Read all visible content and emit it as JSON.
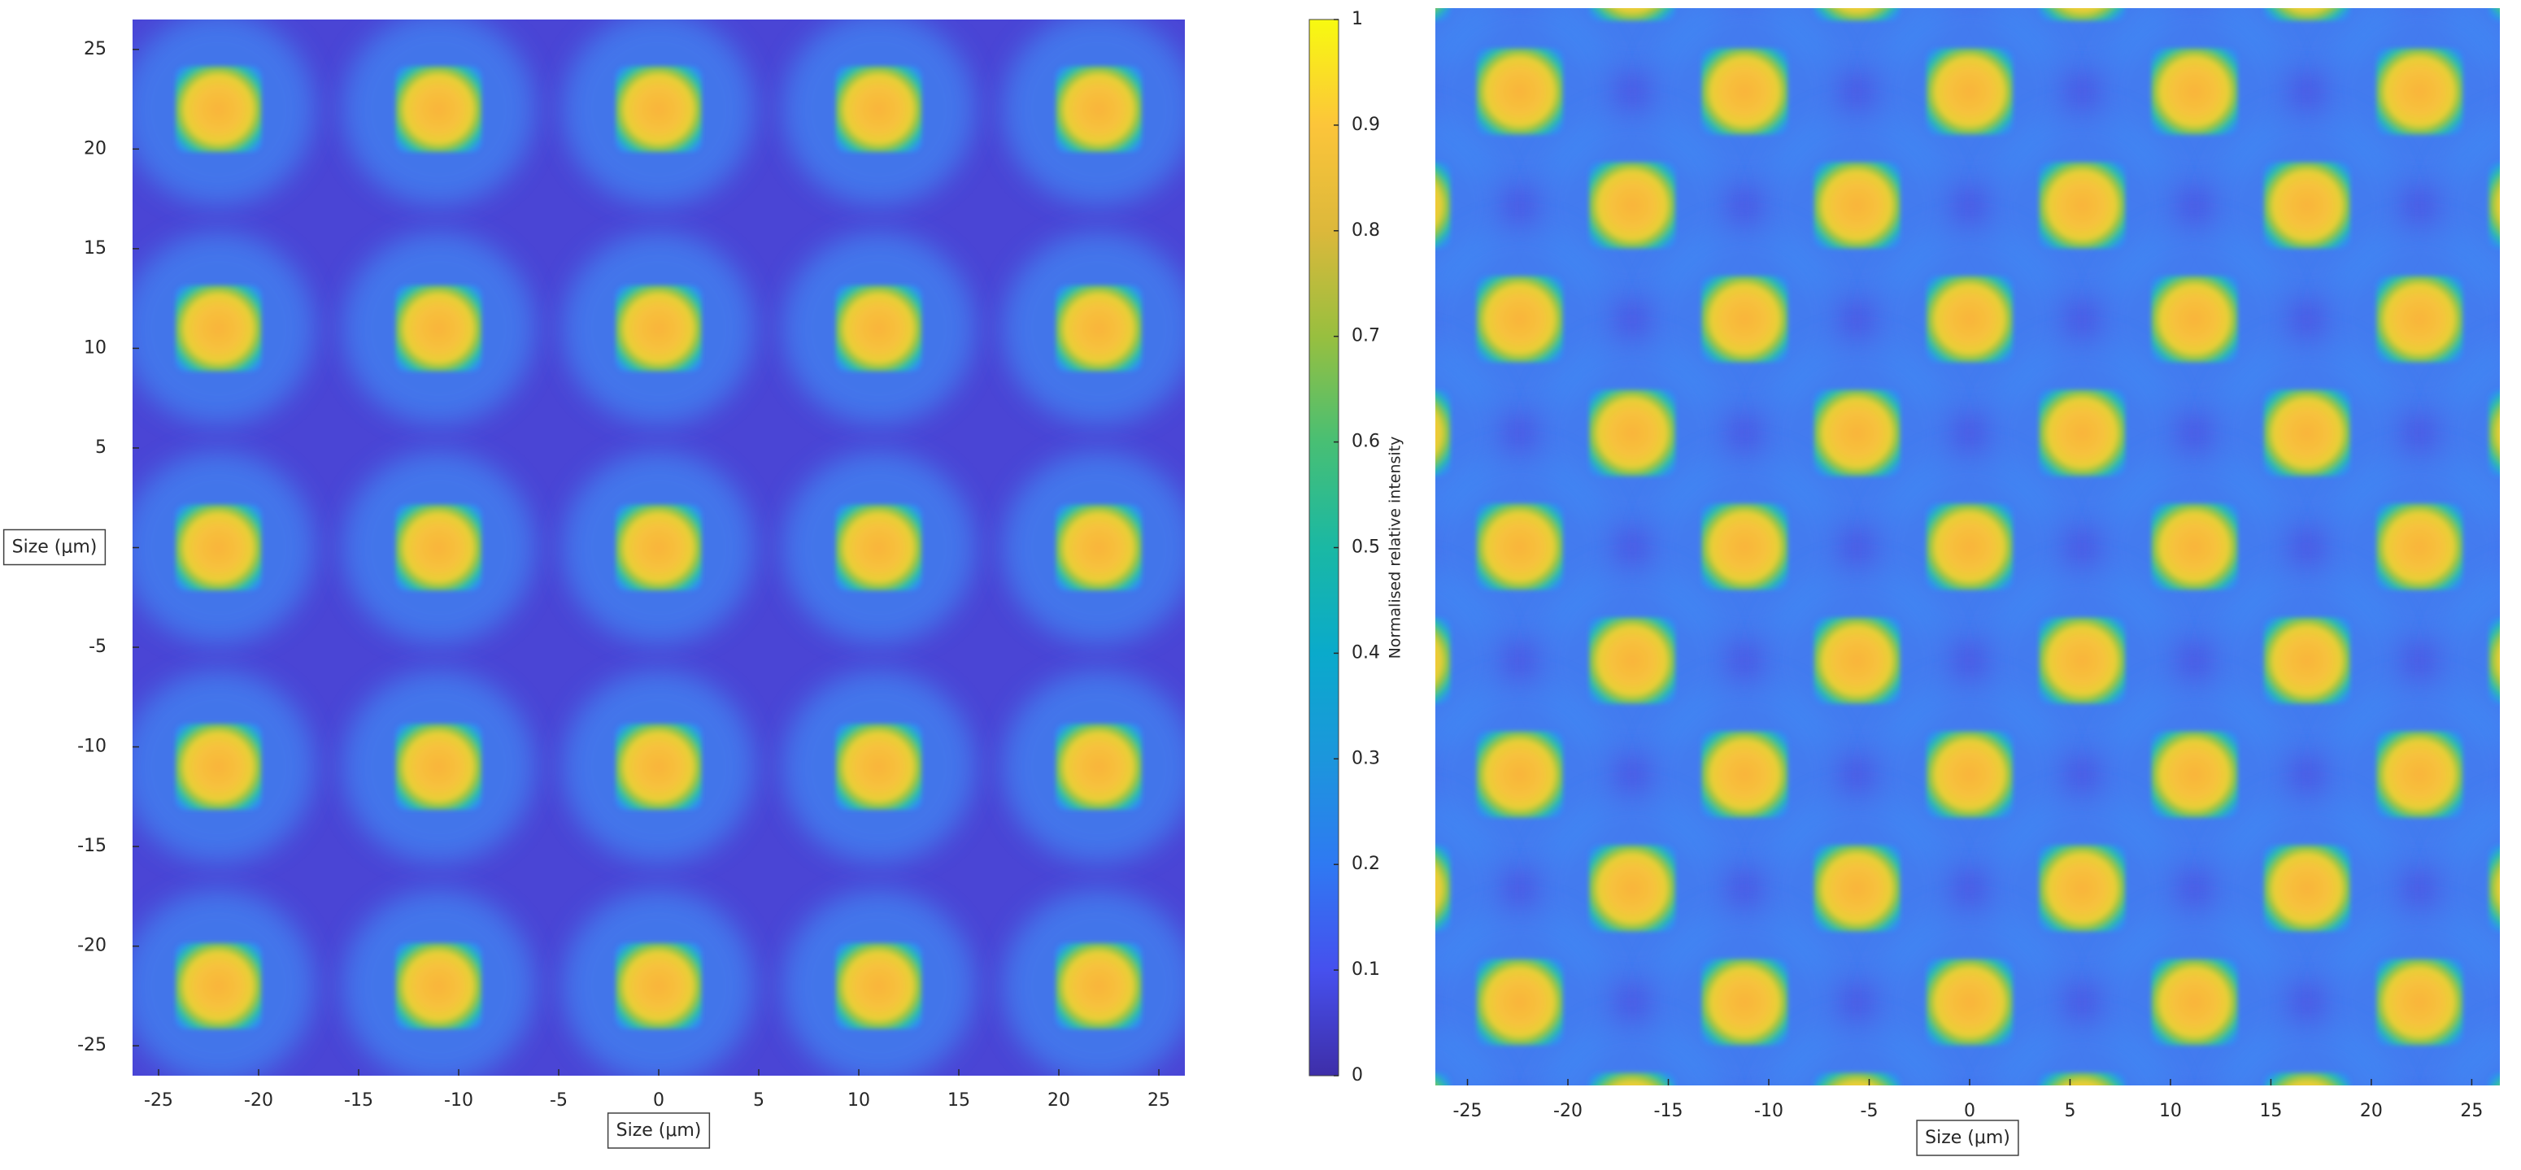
{
  "chart_data": [
    {
      "type": "heatmap",
      "xlabel": "Size (μm)",
      "ylabel": "Size (μm)",
      "xlim": [
        -26.3,
        26.3
      ],
      "ylim": [
        -26.5,
        26.5
      ],
      "xticks": [
        -25,
        -20,
        -15,
        -10,
        -5,
        0,
        5,
        10,
        15,
        20,
        25
      ],
      "yticks": [
        -25,
        -20,
        -15,
        -10,
        -5,
        0,
        5,
        10,
        15,
        20,
        25
      ],
      "background": "#4a45d5",
      "rows": [
        {
          "y": 22,
          "x": [
            -22,
            -11,
            0,
            11,
            22
          ]
        },
        {
          "y": 11,
          "x": [
            -22,
            -11,
            0,
            11,
            22
          ]
        },
        {
          "y": 0,
          "x": [
            -22,
            -11,
            0,
            11,
            22
          ]
        },
        {
          "y": -11,
          "x": [
            -22,
            -11,
            0,
            11,
            22
          ]
        },
        {
          "y": -22,
          "x": [
            -22,
            -11,
            0,
            11,
            22
          ]
        }
      ],
      "colorbar": {
        "label": "Normalised relative intensity",
        "lim": [
          0,
          1
        ],
        "ticks": [
          0,
          0.1,
          0.2,
          0.3,
          0.4,
          0.5,
          0.6,
          0.7,
          0.8,
          0.9,
          1
        ]
      }
    },
    {
      "type": "heatmap",
      "xlabel": "Size (μm)",
      "xlim": [
        -26.6,
        26.4
      ],
      "ylim": [
        -26.5,
        26.5
      ],
      "xticks": [
        -25,
        -20,
        -15,
        -10,
        -5,
        0,
        5,
        10,
        15,
        20,
        25
      ],
      "background": "#4d58e4",
      "rows": [
        {
          "y": 28,
          "x": [
            -28,
            -16.8,
            -5.6,
            5.6,
            16.8,
            28
          ]
        },
        {
          "y": 22.4,
          "x": [
            -22.4,
            -11.2,
            0,
            11.2,
            22.4
          ]
        },
        {
          "y": 16.8,
          "x": [
            -28,
            -16.8,
            -5.6,
            5.6,
            16.8,
            28
          ]
        },
        {
          "y": 11.2,
          "x": [
            -22.4,
            -11.2,
            0,
            11.2,
            22.4
          ]
        },
        {
          "y": 5.6,
          "x": [
            -28,
            -16.8,
            -5.6,
            5.6,
            16.8,
            28
          ]
        },
        {
          "y": 0,
          "x": [
            -22.4,
            -11.2,
            0,
            11.2,
            22.4
          ]
        },
        {
          "y": -5.6,
          "x": [
            -28,
            -16.8,
            -5.6,
            5.6,
            16.8,
            28
          ]
        },
        {
          "y": -11.2,
          "x": [
            -22.4,
            -11.2,
            0,
            11.2,
            22.4
          ]
        },
        {
          "y": -16.8,
          "x": [
            -28,
            -16.8,
            -5.6,
            5.6,
            16.8,
            28
          ]
        },
        {
          "y": -22.4,
          "x": [
            -22.4,
            -11.2,
            0,
            11.2,
            22.4
          ]
        },
        {
          "y": -28,
          "x": [
            -28,
            -16.8,
            -5.6,
            5.6,
            16.8,
            28
          ]
        }
      ]
    }
  ]
}
